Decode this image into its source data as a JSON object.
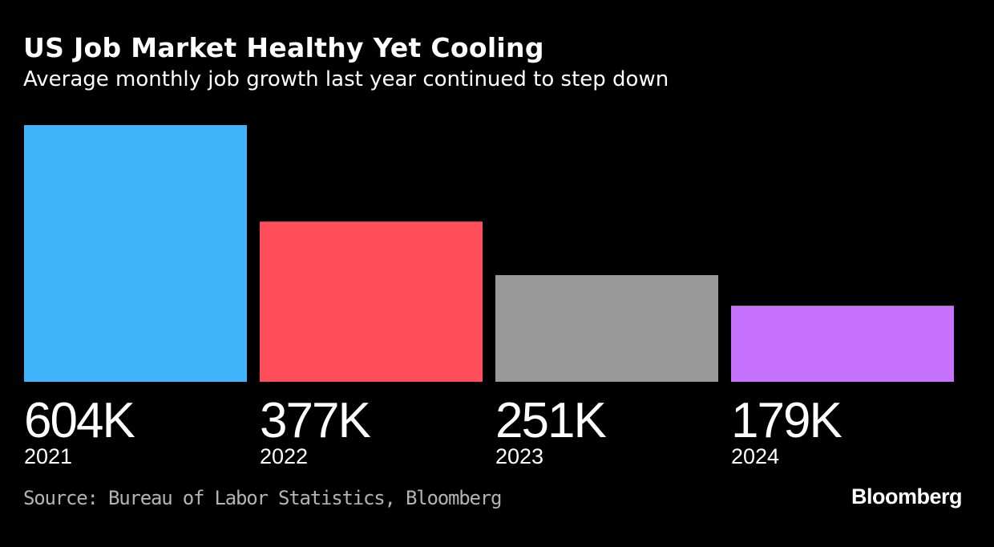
{
  "chart_data": {
    "type": "bar",
    "title": "US Job Market Healthy Yet Cooling",
    "subtitle": "Average monthly job growth last year continued to step down",
    "categories": [
      "2021",
      "2022",
      "2023",
      "2024"
    ],
    "values": [
      604,
      377,
      251,
      179
    ],
    "data_labels": [
      "604K",
      "377K",
      "251K",
      "179K"
    ],
    "unit": "thousands of jobs",
    "colors": [
      "#40b4fa",
      "#ff4d5a",
      "#999999",
      "#c672ff"
    ],
    "ylim": [
      0,
      604
    ],
    "xlabel": "",
    "ylabel": "",
    "grid": false
  },
  "source": "Source: Bureau of Labor Statistics, Bloomberg",
  "brand": "Bloomberg"
}
